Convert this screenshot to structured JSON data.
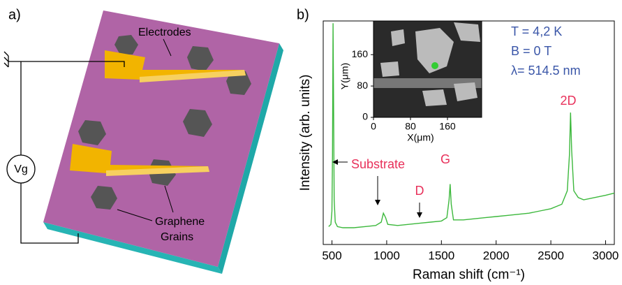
{
  "panel_a": {
    "label": "a)",
    "electrodes": "Electrodes",
    "gate": "Vg",
    "grains_line1": "Graphene",
    "grains_line2": "Grains"
  },
  "chart_data": {
    "type": "line",
    "panel_label": "b)",
    "xlabel": "Raman shift (cm⁻¹)",
    "ylabel": "Intensity (arb. units)",
    "x": [
      470,
      490,
      500,
      505,
      510,
      515,
      520,
      530,
      550,
      600,
      700,
      800,
      900,
      950,
      970,
      990,
      1010,
      1100,
      1200,
      1300,
      1400,
      1500,
      1550,
      1570,
      1580,
      1590,
      1610,
      1700,
      1800,
      1900,
      2000,
      2100,
      2200,
      2300,
      2400,
      2500,
      2600,
      2650,
      2670,
      2680,
      2690,
      2710,
      2750,
      2800,
      2900,
      3000,
      3080
    ],
    "series": [
      {
        "name": "Raman spectrum",
        "color": "#3cb83c",
        "values": [
          8,
          9,
          15,
          40,
          99,
          60,
          20,
          10,
          8,
          7.5,
          7.5,
          8,
          8.5,
          10,
          14,
          12,
          9,
          8.5,
          9,
          9.5,
          10,
          10.5,
          12,
          20,
          27,
          18,
          11,
          11,
          11.5,
          12,
          12.5,
          13,
          13.5,
          14,
          15,
          16,
          18,
          24,
          40,
          59,
          42,
          24,
          21,
          20,
          21,
          22,
          23
        ]
      }
    ],
    "xlim": [
      420,
      3080
    ],
    "ylim": [
      0,
      100
    ],
    "xticks": [
      500,
      1000,
      1500,
      2000,
      2500,
      3000
    ],
    "annotations": {
      "substrate": "Substrate",
      "g": "G",
      "d": "D",
      "two_d": "2D"
    },
    "conditions": [
      "T = 4,2 K",
      "B = 0 T",
      "λ= 514.5 nm"
    ],
    "inset": {
      "xlabel": "X(μm)",
      "ylabel": "Y(μm)",
      "xlim": [
        0,
        234
      ],
      "ylim": [
        0,
        246
      ],
      "xticks": [
        0,
        80,
        160
      ],
      "yticks": [
        0,
        80,
        160
      ]
    }
  }
}
